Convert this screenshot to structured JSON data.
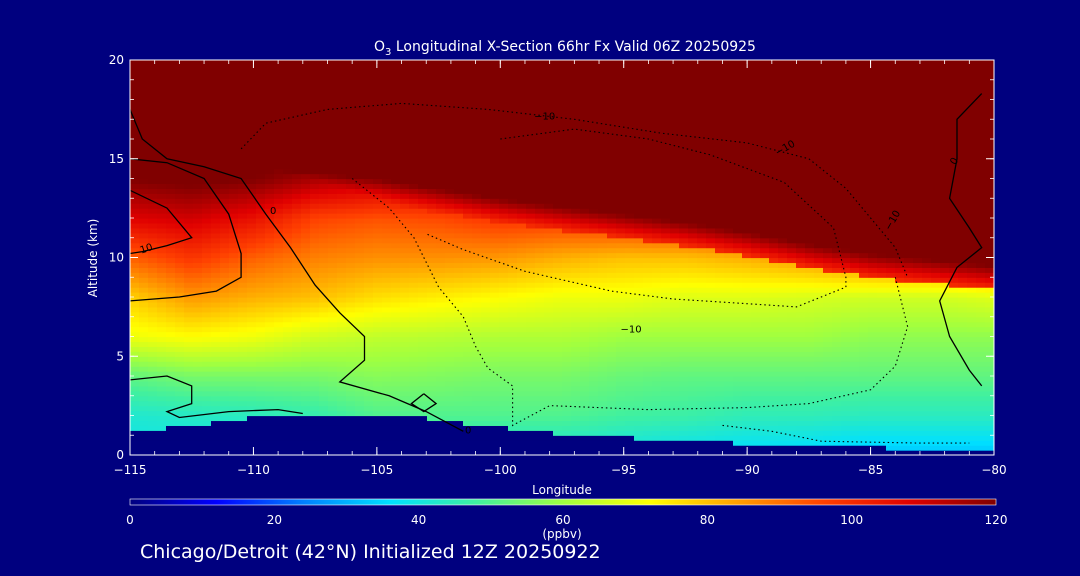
{
  "chart_data": {
    "type": "heatmap",
    "title_prefix": "O",
    "title_sub": "3",
    "title_rest": " Longitudinal X-Section 66hr  Fx Valid 06Z 20250925",
    "xlabel": "Longitude",
    "ylabel": "Altitude (km)",
    "xlim": [
      -115,
      -80
    ],
    "ylim": [
      0,
      20
    ],
    "x_ticks": [
      -115,
      -110,
      -105,
      -100,
      -95,
      -90,
      -85,
      -80
    ],
    "x_tick_labels": [
      "−115",
      "−110",
      "−105",
      "−100",
      "−95",
      "−90",
      "−85",
      "−80"
    ],
    "y_ticks": [
      0,
      5,
      10,
      15,
      20
    ],
    "y_tick_labels": [
      "0",
      "5",
      "10",
      "15",
      "20"
    ],
    "colorbar": {
      "label": "(ppbv)",
      "min": 0,
      "max": 120,
      "ticks": [
        0,
        20,
        40,
        60,
        80,
        100,
        120
      ],
      "tick_labels": [
        "0",
        "20",
        "40",
        "60",
        "80",
        "100",
        "120"
      ],
      "colors": [
        "#00007f",
        "#0000ff",
        "#0080ff",
        "#00e0ff",
        "#40f0a0",
        "#a0ff40",
        "#ffff00",
        "#ffa000",
        "#ff4000",
        "#e00000",
        "#800000"
      ]
    },
    "sample_lons": [
      -115,
      -112.5,
      -110,
      -107.5,
      -105,
      -102.5,
      -100,
      -97.5,
      -95,
      -92.5,
      -90,
      -87.5,
      -85,
      -82.5,
      -80
    ],
    "surface_km": [
      1.2,
      1.5,
      1.9,
      2.0,
      2.1,
      1.8,
      1.4,
      1.1,
      0.9,
      0.7,
      0.6,
      0.5,
      0.4,
      0.3,
      0.3
    ],
    "tropopause_km": [
      14.0,
      14.5,
      14.5,
      14.3,
      14.0,
      13.5,
      13.0,
      12.6,
      12.2,
      11.8,
      11.3,
      10.7,
      10.2,
      9.9,
      9.6
    ],
    "profile_levels_km": [
      0,
      2,
      4,
      6,
      8,
      10,
      12,
      14,
      16,
      18,
      20
    ],
    "profile_ppbv": [
      [
        38,
        42,
        52,
        70,
        78,
        92,
        108,
        120,
        125,
        125,
        125
      ],
      [
        38,
        43,
        55,
        72,
        85,
        98,
        110,
        122,
        125,
        125,
        125
      ],
      [
        38,
        44,
        55,
        70,
        82,
        92,
        105,
        120,
        125,
        125,
        125
      ],
      [
        40,
        46,
        55,
        66,
        80,
        88,
        96,
        115,
        125,
        125,
        125
      ],
      [
        42,
        50,
        57,
        64,
        76,
        86,
        94,
        112,
        125,
        125,
        125
      ],
      [
        42,
        50,
        56,
        63,
        74,
        86,
        95,
        112,
        125,
        125,
        125
      ],
      [
        40,
        50,
        55,
        62,
        72,
        85,
        98,
        115,
        125,
        125,
        125
      ],
      [
        40,
        50,
        55,
        62,
        70,
        82,
        98,
        118,
        125,
        125,
        125
      ],
      [
        38,
        48,
        53,
        60,
        70,
        80,
        100,
        120,
        125,
        125,
        125
      ],
      [
        36,
        47,
        52,
        60,
        68,
        80,
        102,
        122,
        125,
        125,
        125
      ],
      [
        35,
        45,
        52,
        60,
        68,
        82,
        105,
        122,
        125,
        125,
        125
      ],
      [
        34,
        45,
        52,
        60,
        67,
        85,
        110,
        122,
        125,
        125,
        125
      ],
      [
        32,
        44,
        52,
        58,
        66,
        90,
        115,
        125,
        125,
        125,
        125
      ],
      [
        32,
        44,
        52,
        58,
        66,
        92,
        118,
        125,
        125,
        125,
        125
      ],
      [
        32,
        44,
        52,
        58,
        68,
        95,
        120,
        125,
        125,
        125,
        125
      ]
    ],
    "contours": [
      {
        "name": "contour-0-left",
        "style": "solid",
        "points": [
          [
            -115,
            17.5
          ],
          [
            -114.5,
            16.0
          ],
          [
            -113.5,
            15.0
          ],
          [
            -112,
            14.6
          ],
          [
            -110.5,
            14.0
          ],
          [
            -109.5,
            12.2
          ],
          [
            -108.5,
            10.5
          ],
          [
            -107.5,
            8.6
          ],
          [
            -106.5,
            7.2
          ],
          [
            -105.5,
            6.0
          ],
          [
            -105.5,
            4.8
          ],
          [
            -106.5,
            3.7
          ],
          [
            -104.5,
            3.0
          ],
          [
            -103,
            2.2
          ],
          [
            -101.5,
            1.2
          ]
        ]
      },
      {
        "name": "contour-10-left",
        "style": "solid",
        "points": [
          [
            -115,
            13.4
          ],
          [
            -113.5,
            12.5
          ],
          [
            -112.5,
            11.0
          ],
          [
            -113.5,
            10.6
          ],
          [
            -114.5,
            10.3
          ],
          [
            -115,
            10.2
          ]
        ]
      },
      {
        "name": "contour-inner-left",
        "style": "solid",
        "points": [
          [
            -115,
            15.0
          ],
          [
            -113.5,
            14.8
          ],
          [
            -112,
            14.0
          ],
          [
            -111,
            12.2
          ],
          [
            -110.5,
            10.2
          ],
          [
            -110.5,
            9.0
          ],
          [
            -111.5,
            8.3
          ],
          [
            -113,
            8.0
          ],
          [
            -115,
            7.8
          ]
        ]
      },
      {
        "name": "contour-lower-left",
        "style": "solid",
        "points": [
          [
            -115,
            3.8
          ],
          [
            -113.5,
            4.0
          ],
          [
            -112.5,
            3.5
          ],
          [
            -112.5,
            2.6
          ],
          [
            -113.5,
            2.2
          ],
          [
            -113,
            1.9
          ],
          [
            -111,
            2.2
          ],
          [
            -109,
            2.3
          ],
          [
            -108,
            2.1
          ]
        ]
      },
      {
        "name": "contour-diamond",
        "style": "solid",
        "points": [
          [
            -103.1,
            3.1
          ],
          [
            -102.6,
            2.6
          ],
          [
            -103.1,
            2.2
          ],
          [
            -103.6,
            2.6
          ],
          [
            -103.1,
            3.1
          ]
        ]
      },
      {
        "name": "contour-0-right",
        "style": "solid",
        "points": [
          [
            -80.5,
            18.3
          ],
          [
            -81.5,
            17.0
          ],
          [
            -81.5,
            15.0
          ],
          [
            -81.8,
            13.0
          ],
          [
            -81.0,
            11.5
          ],
          [
            -80.5,
            10.5
          ],
          [
            -81.5,
            9.5
          ],
          [
            -82.2,
            7.8
          ],
          [
            -81.8,
            6.0
          ],
          [
            -81.0,
            4.3
          ],
          [
            -80.5,
            3.5
          ]
        ]
      },
      {
        "name": "contour-neg10-upper",
        "style": "dotted",
        "points": [
          [
            -110.5,
            15.5
          ],
          [
            -109.5,
            16.8
          ],
          [
            -107,
            17.5
          ],
          [
            -104,
            17.8
          ],
          [
            -100.5,
            17.5
          ],
          [
            -97,
            17.0
          ],
          [
            -93.5,
            16.3
          ],
          [
            -90,
            15.8
          ],
          [
            -87.5,
            15.0
          ],
          [
            -86,
            13.5
          ],
          [
            -85,
            12.0
          ],
          [
            -84,
            10.5
          ],
          [
            -83.5,
            9.0
          ]
        ]
      },
      {
        "name": "contour-neg10-upper-inner",
        "style": "dotted",
        "points": [
          [
            -100,
            16.0
          ],
          [
            -97,
            16.5
          ],
          [
            -94,
            16.0
          ],
          [
            -91.5,
            15.2
          ],
          [
            -88.5,
            13.8
          ],
          [
            -86.5,
            11.5
          ],
          [
            -86,
            9.0
          ],
          [
            -86,
            8.5
          ],
          [
            -88,
            7.5
          ],
          [
            -90.5,
            7.7
          ],
          [
            -93,
            7.9
          ],
          [
            -95.5,
            8.3
          ],
          [
            -99,
            9.3
          ],
          [
            -101.5,
            10.4
          ],
          [
            -103,
            11.2
          ]
        ]
      },
      {
        "name": "contour-neg10-middle",
        "style": "dotted",
        "points": [
          [
            -106,
            14.0
          ],
          [
            -104.5,
            12.5
          ],
          [
            -103.5,
            11.0
          ],
          [
            -102.5,
            8.5
          ],
          [
            -101.5,
            7.0
          ],
          [
            -101,
            5.5
          ],
          [
            -100.5,
            4.4
          ],
          [
            -99.5,
            3.5
          ],
          [
            -99.5,
            1.5
          ],
          [
            -98,
            2.5
          ],
          [
            -94,
            2.3
          ],
          [
            -90,
            2.4
          ],
          [
            -87.5,
            2.6
          ],
          [
            -85,
            3.3
          ],
          [
            -84,
            4.5
          ],
          [
            -83.5,
            6.5
          ],
          [
            -84,
            9.0
          ]
        ]
      },
      {
        "name": "contour-neg10-lower",
        "style": "dotted",
        "points": [
          [
            -91,
            1.5
          ],
          [
            -89,
            1.2
          ],
          [
            -87,
            0.7
          ],
          [
            -83,
            0.6
          ],
          [
            -81,
            0.6
          ]
        ]
      }
    ],
    "contour_labels": [
      {
        "text": "0",
        "x": -109.2,
        "y": 12.2,
        "angle": 0
      },
      {
        "text": "10",
        "x": -114.3,
        "y": 10.3,
        "angle": -18
      },
      {
        "text": "−10",
        "x": -98.2,
        "y": 17.0,
        "angle": 0
      },
      {
        "text": "−10",
        "x": -94.7,
        "y": 6.2,
        "angle": 0
      },
      {
        "text": "0",
        "x": -101.3,
        "y": 1.1,
        "angle": 0
      },
      {
        "text": "−10",
        "x": -84.0,
        "y": 11.8,
        "angle": -60
      },
      {
        "text": "−10",
        "x": -88.4,
        "y": 15.4,
        "angle": -30
      },
      {
        "text": "0",
        "x": -81.5,
        "y": 14.8,
        "angle": -60
      }
    ],
    "location": "Chicago/Detroit (42°N) Initialized 12Z 20250922"
  }
}
